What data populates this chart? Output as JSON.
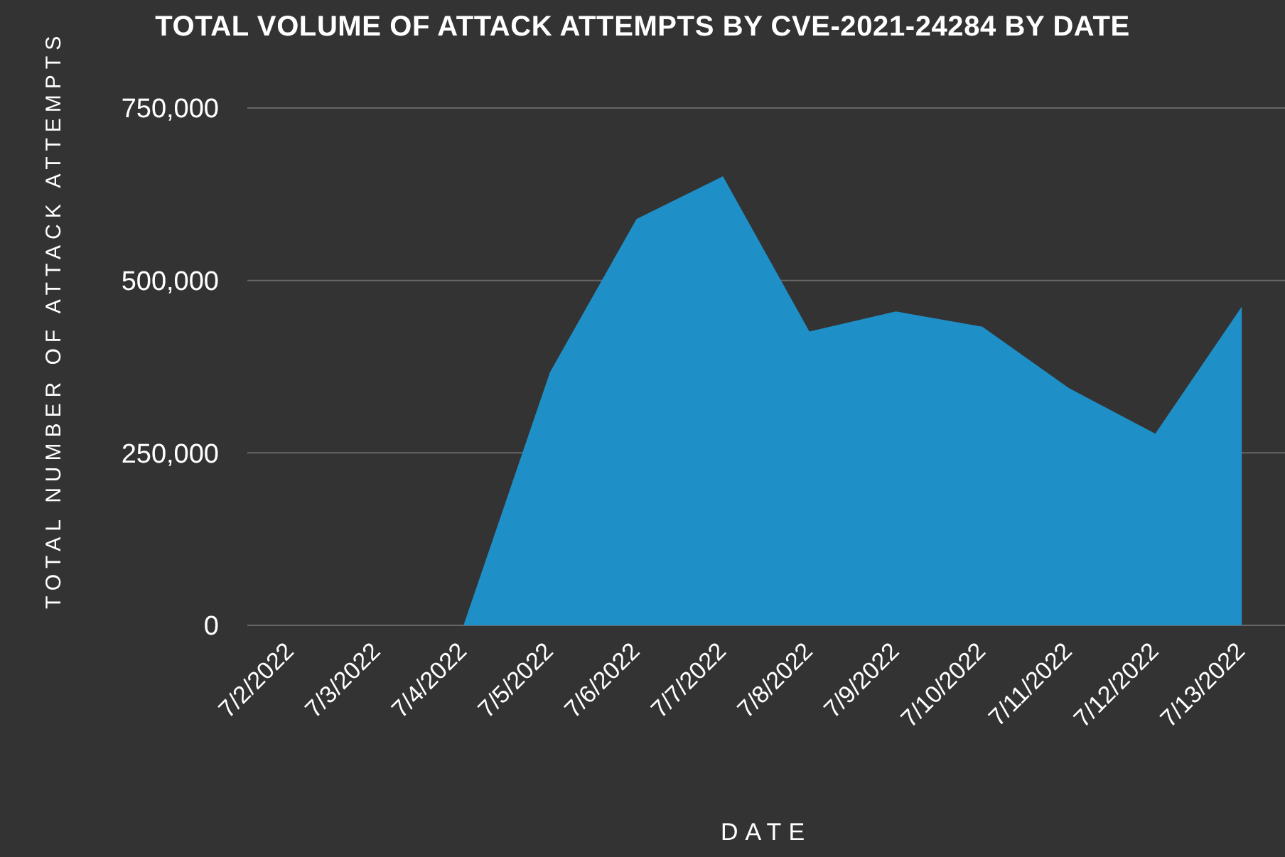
{
  "chart_data": {
    "type": "area",
    "title": "TOTAL VOLUME OF ATTACK ATTEMPTS BY CVE-2021-24284 BY DATE",
    "xlabel": "DATE",
    "ylabel": "TOTAL NUMBER OF ATTACK ATTEMPTS",
    "categories": [
      "7/2/2022",
      "7/3/2022",
      "7/4/2022",
      "7/5/2022",
      "7/6/2022",
      "7/7/2022",
      "7/8/2022",
      "7/9/2022",
      "7/10/2022",
      "7/11/2022",
      "7/12/2022",
      "7/13/2022"
    ],
    "series": [
      {
        "color": "#1f8fc7",
        "values": [
          null,
          null,
          0,
          367000,
          589000,
          651000,
          426000,
          455000,
          433000,
          344000,
          278000,
          462000
        ]
      }
    ],
    "ylim": [
      0,
      750000
    ],
    "yticks": [
      {
        "value": 0,
        "label": "0"
      },
      {
        "value": 250000,
        "label": "250,000"
      },
      {
        "value": 500000,
        "label": "500,000"
      },
      {
        "value": 750000,
        "label": "750,000"
      }
    ],
    "grid": "y",
    "legend": false
  }
}
